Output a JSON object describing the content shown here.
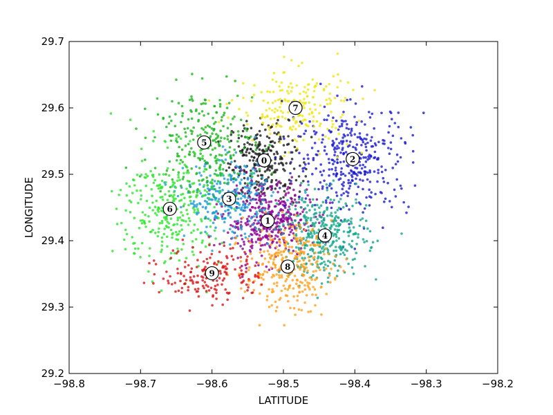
{
  "chart_data": {
    "type": "scatter",
    "title": "",
    "xlabel": "LATITUDE",
    "ylabel": "LONGITUDE",
    "xlim": [
      -98.8,
      -98.2
    ],
    "ylim": [
      29.2,
      29.7
    ],
    "xticks": [
      -98.8,
      -98.7,
      -98.6,
      -98.5,
      -98.4,
      -98.3,
      -98.2
    ],
    "yticks": [
      29.2,
      29.3,
      29.4,
      29.5,
      29.6,
      29.7
    ],
    "xtick_labels": [
      "−98.8",
      "−98.7",
      "−98.6",
      "−98.5",
      "−98.4",
      "−98.3",
      "−98.2"
    ],
    "ytick_labels": [
      "29.2",
      "29.3",
      "29.4",
      "29.5",
      "29.6",
      "29.7"
    ],
    "grid": false,
    "legend": "none",
    "clusters": [
      {
        "label": "0",
        "color": "#1a1a1a",
        "center": [
          -98.527,
          29.521
        ],
        "spread": [
          0.025,
          0.03
        ],
        "count": 260
      },
      {
        "label": "1",
        "color": "#8c0096",
        "center": [
          -98.522,
          29.43
        ],
        "spread": [
          0.03,
          0.028
        ],
        "count": 420
      },
      {
        "label": "2",
        "color": "#1a1ad2",
        "center": [
          -98.403,
          29.523
        ],
        "spread": [
          0.04,
          0.04
        ],
        "count": 360
      },
      {
        "label": "3",
        "color": "#1a9bd7",
        "center": [
          -98.576,
          29.463
        ],
        "spread": [
          0.03,
          0.028
        ],
        "count": 300
      },
      {
        "label": "4",
        "color": "#14a88c",
        "center": [
          -98.442,
          29.408
        ],
        "spread": [
          0.03,
          0.032
        ],
        "count": 360
      },
      {
        "label": "5",
        "color": "#1ab81a",
        "center": [
          -98.611,
          29.548
        ],
        "spread": [
          0.035,
          0.04
        ],
        "count": 260
      },
      {
        "label": "6",
        "color": "#2ee62e",
        "center": [
          -98.659,
          29.448
        ],
        "spread": [
          0.035,
          0.045
        ],
        "count": 300
      },
      {
        "label": "7",
        "color": "#f0e614",
        "center": [
          -98.483,
          29.6
        ],
        "spread": [
          0.04,
          0.03
        ],
        "count": 200
      },
      {
        "label": "8",
        "color": "#ffa01a",
        "center": [
          -98.494,
          29.361
        ],
        "spread": [
          0.03,
          0.032
        ],
        "count": 300
      },
      {
        "label": "9",
        "color": "#dc1414",
        "center": [
          -98.6,
          29.351
        ],
        "spread": [
          0.035,
          0.022
        ],
        "count": 170
      }
    ]
  }
}
